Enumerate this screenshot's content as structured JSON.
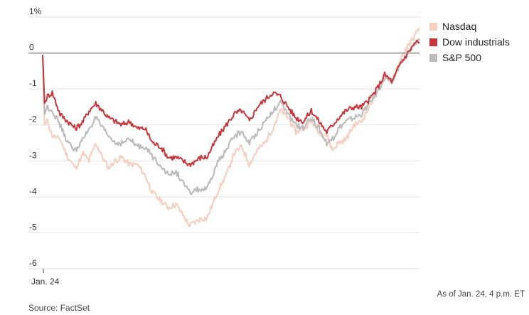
{
  "chart_data": {
    "type": "line",
    "title": "",
    "xlabel": "",
    "ylabel": "",
    "x_tick_labels": [
      "Jan. 24"
    ],
    "y_ticks": [
      1,
      0,
      -1,
      -2,
      -3,
      -4,
      -5,
      -6
    ],
    "y_tick_labels": [
      "1%",
      "0",
      "-1",
      "-2",
      "-3",
      "-4",
      "-5",
      "-6"
    ],
    "ylim": [
      -6,
      1
    ],
    "grid": true,
    "legend_position": "top-right",
    "x_unit": "minutes since open (9:30 a.m. to 4 p.m. ET)",
    "series": [
      {
        "name": "Nasdaq",
        "color": "#f6cfc1",
        "x": [
          0,
          2,
          5,
          10,
          18,
          26,
          34,
          42,
          48,
          55,
          62,
          68,
          75,
          82,
          90,
          98,
          106,
          114,
          122,
          130,
          138,
          145,
          152,
          158,
          164,
          170,
          176,
          182,
          190,
          198,
          206,
          214,
          222,
          230,
          238,
          246,
          254,
          262,
          270,
          278,
          286,
          294,
          300,
          306,
          314,
          322,
          330,
          338,
          346,
          354,
          362,
          370,
          378,
          386,
          390
        ],
        "values": [
          -0.1,
          -2.0,
          -1.9,
          -2.3,
          -2.4,
          -2.9,
          -3.2,
          -2.8,
          -3.0,
          -2.5,
          -2.9,
          -3.2,
          -3.0,
          -2.9,
          -3.1,
          -3.1,
          -3.4,
          -3.9,
          -4.1,
          -4.3,
          -4.2,
          -4.5,
          -4.8,
          -4.7,
          -4.6,
          -4.6,
          -4.2,
          -3.8,
          -3.4,
          -2.8,
          -2.6,
          -3.1,
          -2.7,
          -2.5,
          -2.1,
          -1.6,
          -1.8,
          -2.2,
          -2.1,
          -1.9,
          -2.2,
          -2.3,
          -2.7,
          -2.5,
          -2.4,
          -2.0,
          -1.9,
          -1.5,
          -1.0,
          -0.6,
          -0.8,
          -0.2,
          0.2,
          0.5,
          0.7
        ]
      },
      {
        "name": "Dow industrials",
        "color": "#c8363a",
        "x": [
          0,
          2,
          5,
          10,
          18,
          26,
          34,
          42,
          48,
          55,
          62,
          68,
          75,
          82,
          90,
          98,
          106,
          114,
          122,
          130,
          138,
          145,
          152,
          158,
          164,
          170,
          176,
          182,
          190,
          198,
          206,
          214,
          222,
          230,
          238,
          246,
          254,
          262,
          270,
          278,
          286,
          294,
          300,
          306,
          314,
          322,
          330,
          338,
          346,
          354,
          362,
          370,
          378,
          386,
          390
        ],
        "values": [
          -0.05,
          -1.4,
          -1.2,
          -1.1,
          -1.7,
          -1.9,
          -2.1,
          -1.9,
          -1.6,
          -1.4,
          -1.6,
          -1.8,
          -1.9,
          -2.0,
          -1.9,
          -2.1,
          -2.1,
          -2.5,
          -2.6,
          -2.9,
          -2.9,
          -3.0,
          -3.1,
          -3.0,
          -2.9,
          -2.9,
          -2.6,
          -2.3,
          -2.0,
          -1.7,
          -1.6,
          -1.9,
          -1.5,
          -1.3,
          -1.1,
          -1.2,
          -1.5,
          -1.8,
          -1.9,
          -1.6,
          -1.9,
          -2.2,
          -2.0,
          -1.8,
          -1.6,
          -1.5,
          -1.5,
          -1.3,
          -1.0,
          -0.6,
          -0.8,
          -0.3,
          0.0,
          0.3,
          0.3
        ]
      },
      {
        "name": "S&P 500",
        "color": "#bdbdbd",
        "x": [
          0,
          2,
          5,
          10,
          18,
          26,
          34,
          42,
          48,
          55,
          62,
          68,
          75,
          82,
          90,
          98,
          106,
          114,
          122,
          130,
          138,
          145,
          152,
          158,
          164,
          170,
          176,
          182,
          190,
          198,
          206,
          214,
          222,
          230,
          238,
          246,
          254,
          262,
          270,
          278,
          286,
          294,
          300,
          306,
          314,
          322,
          330,
          338,
          346,
          354,
          362,
          370,
          378,
          386,
          390
        ],
        "values": [
          -0.08,
          -1.7,
          -1.5,
          -1.6,
          -2.0,
          -2.5,
          -2.7,
          -2.4,
          -2.1,
          -1.8,
          -2.1,
          -2.3,
          -2.5,
          -2.5,
          -2.4,
          -2.6,
          -2.6,
          -2.9,
          -3.1,
          -3.4,
          -3.3,
          -3.6,
          -3.9,
          -3.8,
          -3.8,
          -3.8,
          -3.4,
          -3.0,
          -2.7,
          -2.3,
          -2.2,
          -2.5,
          -2.2,
          -1.9,
          -1.6,
          -1.4,
          -1.7,
          -2.0,
          -2.1,
          -1.8,
          -2.1,
          -2.5,
          -2.4,
          -2.1,
          -1.9,
          -1.8,
          -1.7,
          -1.4,
          -1.1,
          -0.7,
          -0.8,
          -0.3,
          0.0,
          0.3,
          0.4
        ]
      }
    ]
  },
  "legend": {
    "items": [
      {
        "label": "Nasdaq",
        "color": "#f6cfc1"
      },
      {
        "label": "Dow industrials",
        "color": "#c8363a"
      },
      {
        "label": "S&P 500",
        "color": "#bdbdbd"
      }
    ]
  },
  "footer": {
    "source": "Source: FactSet",
    "as_of": "As of Jan. 24, 4 p.m. ET"
  }
}
